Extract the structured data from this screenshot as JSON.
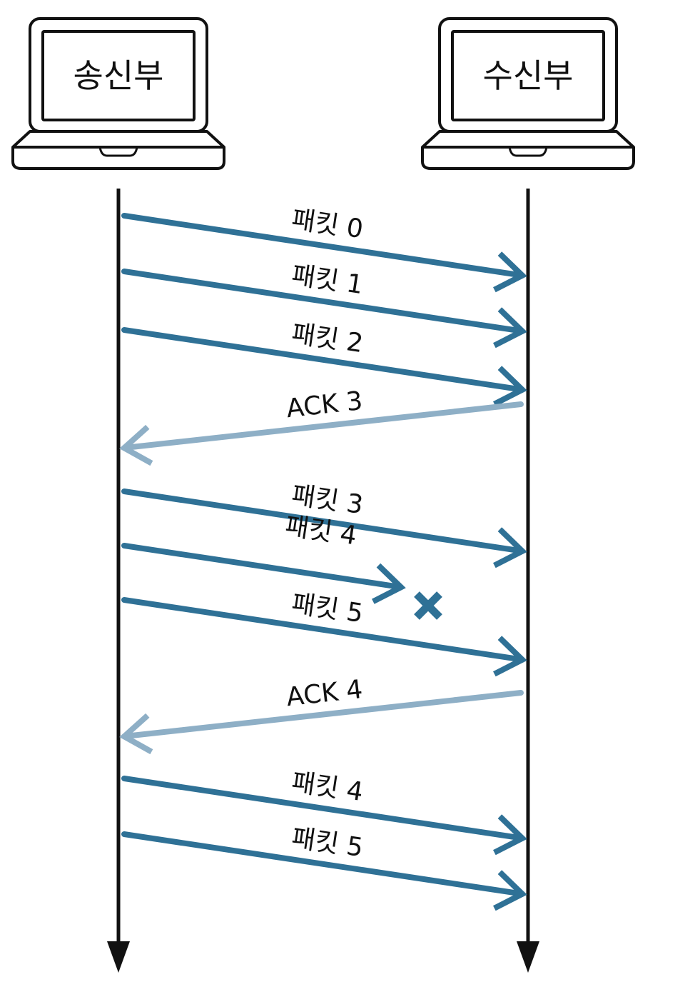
{
  "nodes": {
    "sender": {
      "label": "송신부"
    },
    "receiver": {
      "label": "수신부"
    }
  },
  "colors": {
    "packet": "#2F7196",
    "ack": "#8EAFC6",
    "lost_marker": "#2F7196",
    "outline": "#111111",
    "timeline": "#111111"
  },
  "icons": {
    "endpoint": "laptop-icon",
    "lost": "x-mark-icon",
    "timeline_end": "arrowhead-down-icon"
  },
  "messages": [
    {
      "type": "packet",
      "label": "패킷 0",
      "from": "sender",
      "to": "receiver",
      "lost": false
    },
    {
      "type": "packet",
      "label": "패킷 1",
      "from": "sender",
      "to": "receiver",
      "lost": false
    },
    {
      "type": "packet",
      "label": "패킷 2",
      "from": "sender",
      "to": "receiver",
      "lost": false
    },
    {
      "type": "ack",
      "label": "ACK 3",
      "from": "receiver",
      "to": "sender",
      "lost": false
    },
    {
      "type": "packet",
      "label": "패킷 3",
      "from": "sender",
      "to": "receiver",
      "lost": false
    },
    {
      "type": "packet",
      "label": "패킷 4",
      "from": "sender",
      "to": "receiver",
      "lost": true
    },
    {
      "type": "packet",
      "label": "패킷 5",
      "from": "sender",
      "to": "receiver",
      "lost": false
    },
    {
      "type": "ack",
      "label": "ACK 4",
      "from": "receiver",
      "to": "sender",
      "lost": false
    },
    {
      "type": "packet",
      "label": "패킷 4",
      "from": "sender",
      "to": "receiver",
      "lost": false
    },
    {
      "type": "packet",
      "label": "패킷 5",
      "from": "sender",
      "to": "receiver",
      "lost": false
    }
  ]
}
